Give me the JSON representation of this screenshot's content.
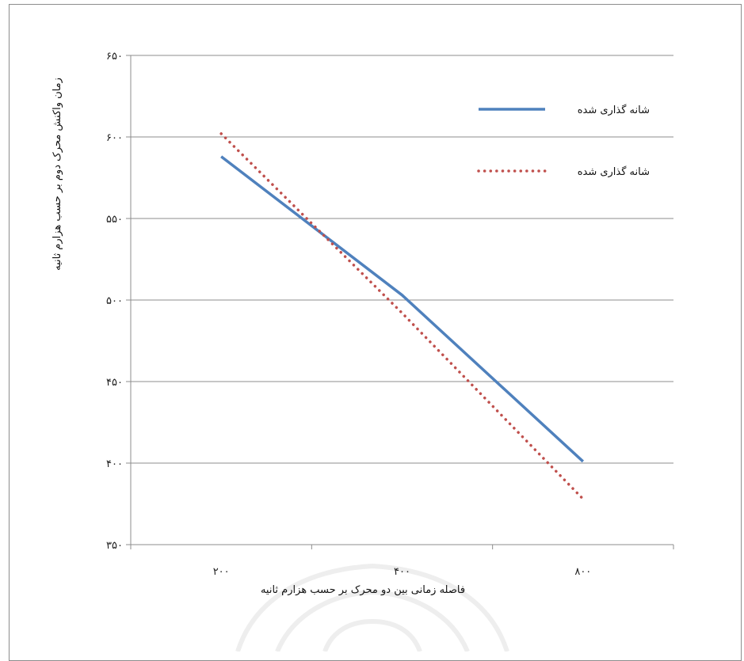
{
  "chart_data": {
    "type": "line",
    "title": "",
    "xlabel": "فاصله زمانی بین دو محرک بر حسب هزارم ثانیه",
    "ylabel": "زمان واکنش محرک دوم بر حسب هزارم ثانیه",
    "categories": [
      "۲۰۰",
      "۴۰۰",
      "۸۰۰"
    ],
    "ylim": [
      350,
      650
    ],
    "yticks": [
      350,
      400,
      450,
      500,
      550,
      600,
      650
    ],
    "ytick_labels": [
      "۳۵۰",
      "۴۰۰",
      "۴۵۰",
      "۵۰۰",
      "۵۵۰",
      "۶۰۰",
      "۶۵۰"
    ],
    "grid": true,
    "legend_position": "top-right",
    "series": [
      {
        "name": "شانه گذاری شده",
        "values": [
          588,
          503,
          401
        ],
        "style": "solid",
        "color": "#4f81bd"
      },
      {
        "name": "شانه گذاری شده",
        "values": [
          602,
          492,
          378
        ],
        "style": "dotted",
        "color": "#c0504d"
      }
    ]
  }
}
